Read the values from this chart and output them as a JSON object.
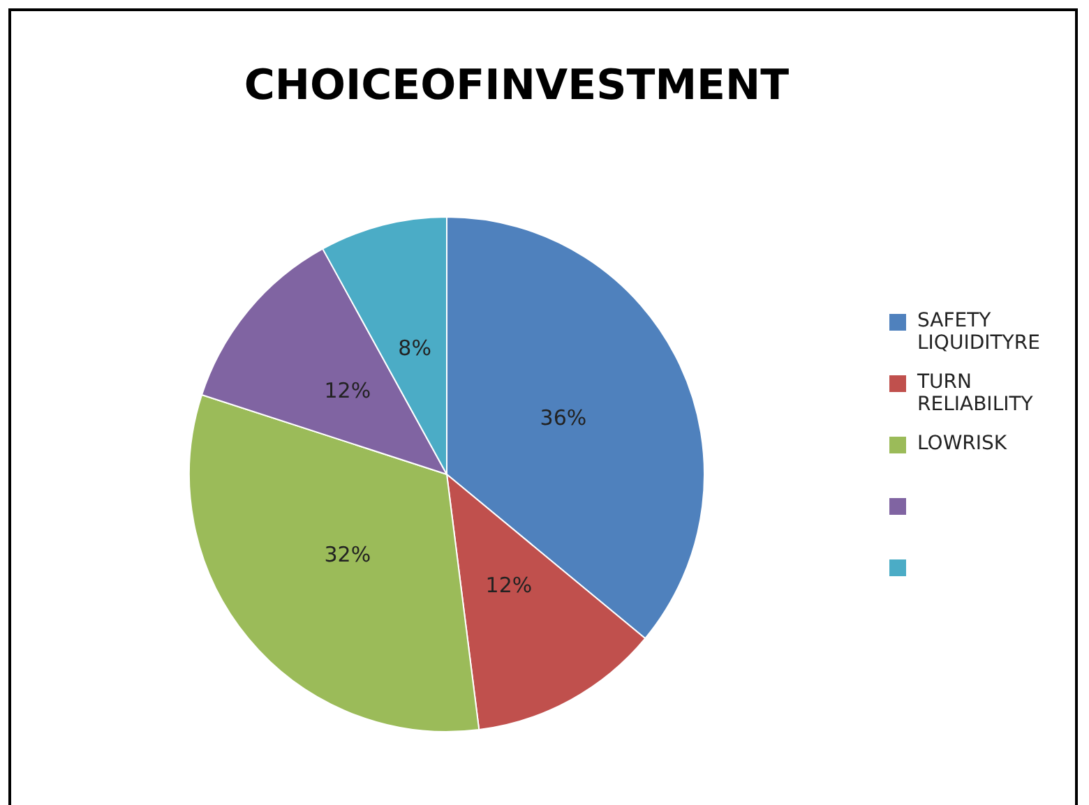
{
  "chart_data": {
    "type": "pie",
    "title": "CHOICEOFINVESTMENT",
    "categories": [
      "SAFETY LIQUIDITYRE",
      "TURN RELIABILITY",
      "LOWRISK",
      null,
      null
    ],
    "values": [
      36,
      12,
      32,
      12,
      8
    ],
    "colors": [
      "#4f81bd",
      "#c0504d",
      "#9bbb59",
      "#8064a2",
      "#4bacc6"
    ],
    "value_labels": [
      "36%",
      "12%",
      "32%",
      "12%",
      "8%"
    ],
    "legend": "right"
  }
}
